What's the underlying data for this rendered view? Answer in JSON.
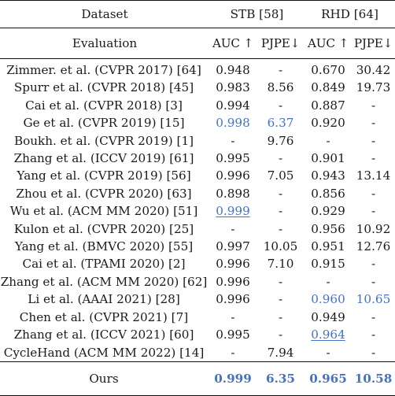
{
  "header": {
    "dataset_label": "Dataset",
    "evaluation_label": "Evaluation",
    "groups": [
      {
        "label": "STB [58]"
      },
      {
        "label": "RHD [64]"
      }
    ],
    "metrics": [
      "AUC ↑",
      "PJPE↓",
      "AUC ↑",
      "PJPE↓"
    ]
  },
  "rows": [
    {
      "method": "Zimmer. et al. (CVPR 2017) [64]",
      "cells": [
        {
          "v": "0.948"
        },
        {
          "v": "-"
        },
        {
          "v": "0.670"
        },
        {
          "v": "30.42"
        }
      ]
    },
    {
      "method": "Spurr et al. (CVPR 2018) [45]",
      "cells": [
        {
          "v": "0.983"
        },
        {
          "v": "8.56"
        },
        {
          "v": "0.849"
        },
        {
          "v": "19.73"
        }
      ]
    },
    {
      "method": "Cai et al. (CVPR 2018) [3]",
      "cells": [
        {
          "v": "0.994"
        },
        {
          "v": "-"
        },
        {
          "v": "0.887"
        },
        {
          "v": "-"
        }
      ]
    },
    {
      "method": "Ge et al. (CVPR 2019) [15]",
      "cells": [
        {
          "v": "0.998",
          "style": "blue"
        },
        {
          "v": "6.37",
          "style": "blue"
        },
        {
          "v": "0.920"
        },
        {
          "v": "-"
        }
      ]
    },
    {
      "method": "Boukh. et al. (CVPR 2019) [1]",
      "cells": [
        {
          "v": "-"
        },
        {
          "v": "9.76"
        },
        {
          "v": "-"
        },
        {
          "v": "-"
        }
      ]
    },
    {
      "method": "Zhang et al. (ICCV 2019) [61]",
      "cells": [
        {
          "v": "0.995"
        },
        {
          "v": "-"
        },
        {
          "v": "0.901"
        },
        {
          "v": "-"
        }
      ]
    },
    {
      "method": "Yang et al. (CVPR 2019) [56]",
      "cells": [
        {
          "v": "0.996"
        },
        {
          "v": "7.05"
        },
        {
          "v": "0.943"
        },
        {
          "v": "13.14"
        }
      ]
    },
    {
      "method": "Zhou et al. (CVPR 2020) [63]",
      "cells": [
        {
          "v": "0.898"
        },
        {
          "v": "-"
        },
        {
          "v": "0.856"
        },
        {
          "v": "-"
        }
      ]
    },
    {
      "method": "Wu et al. (ACM MM 2020) [51]",
      "cells": [
        {
          "v": "0.999",
          "style": "blue-under"
        },
        {
          "v": "-"
        },
        {
          "v": "0.929"
        },
        {
          "v": "-"
        }
      ]
    },
    {
      "method": "Kulon et al. (CVPR 2020) [25]",
      "cells": [
        {
          "v": "-"
        },
        {
          "v": "-"
        },
        {
          "v": "0.956"
        },
        {
          "v": "10.92"
        }
      ]
    },
    {
      "method": "Yang et al. (BMVC 2020) [55]",
      "cells": [
        {
          "v": "0.997"
        },
        {
          "v": "10.05"
        },
        {
          "v": "0.951"
        },
        {
          "v": "12.76"
        }
      ]
    },
    {
      "method": "Cai et al. (TPAMI 2020) [2]",
      "cells": [
        {
          "v": "0.996"
        },
        {
          "v": "7.10"
        },
        {
          "v": "0.915"
        },
        {
          "v": "-"
        }
      ]
    },
    {
      "method": "Zhang et al. (ACM MM 2020) [62]",
      "cells": [
        {
          "v": "0.996"
        },
        {
          "v": "-"
        },
        {
          "v": "-"
        },
        {
          "v": "-"
        }
      ]
    },
    {
      "method": "Li et al. (AAAI 2021) [28]",
      "cells": [
        {
          "v": "0.996"
        },
        {
          "v": "-"
        },
        {
          "v": "0.960",
          "style": "blue"
        },
        {
          "v": "10.65",
          "style": "blue"
        }
      ]
    },
    {
      "method": "Chen et al. (CVPR 2021) [7]",
      "cells": [
        {
          "v": "-"
        },
        {
          "v": "-"
        },
        {
          "v": "0.949"
        },
        {
          "v": "-"
        }
      ]
    },
    {
      "method": "Zhang et al. (ICCV 2021) [60]",
      "cells": [
        {
          "v": "0.995"
        },
        {
          "v": "-"
        },
        {
          "v": "0.964",
          "style": "blue-under"
        },
        {
          "v": "-"
        }
      ]
    },
    {
      "method": "CycleHand (ACM MM 2022) [14]",
      "cells": [
        {
          "v": "-"
        },
        {
          "v": "7.94"
        },
        {
          "v": "-"
        },
        {
          "v": "-"
        }
      ]
    }
  ],
  "ours": {
    "method": "Ours",
    "cells": [
      {
        "v": "0.999",
        "style": "blue-bold"
      },
      {
        "v": "6.35",
        "style": "blue-bold"
      },
      {
        "v": "0.965",
        "style": "blue-bold"
      },
      {
        "v": "10.58",
        "style": "blue-bold"
      }
    ]
  },
  "colors": {
    "highlight_blue": "#4472c4",
    "text": "#1a1a1a",
    "rule": "#111111"
  }
}
